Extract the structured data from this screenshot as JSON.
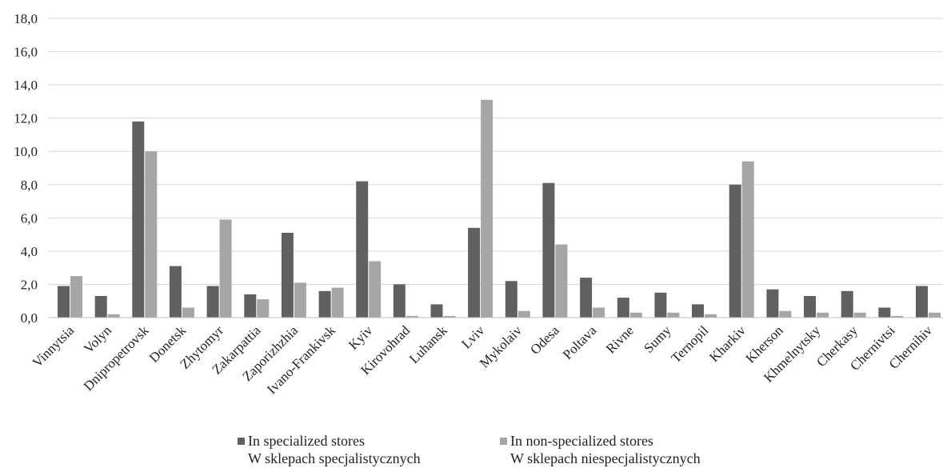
{
  "chart_data": {
    "type": "bar",
    "title": "",
    "xlabel": "",
    "ylabel": "",
    "ylim": [
      0,
      18
    ],
    "yticks": [
      "0,0",
      "2,0",
      "4,0",
      "6,0",
      "8,0",
      "10,0",
      "12,0",
      "14,0",
      "16,0",
      "18,0"
    ],
    "grid": true,
    "legend_position": "bottom",
    "categories": [
      "Vinnytsia",
      "Volyn",
      "Dnipropetrovsk",
      "Donetsk",
      "Zhytomyr",
      "Zakarpattia",
      "Zaporizhzhia",
      "Ivano-Frankivsk",
      "Kyiv",
      "Kirovohrad",
      "Luhansk",
      "Lviv",
      "Mykolaiv",
      "Odesa",
      "Poltava",
      "Rivne",
      "Sumy",
      "Ternopil",
      "Kharkiv",
      "Kherson",
      "Khmelnytsky",
      "Cherkasy",
      "Chernivtsi",
      "Chernihiv"
    ],
    "series": [
      {
        "name": "In specialized stores",
        "name_pl": "W sklepach specjalistycznych",
        "color": "#606060",
        "values": [
          1.9,
          1.3,
          11.8,
          3.1,
          1.9,
          1.4,
          5.1,
          1.6,
          8.2,
          2.0,
          0.8,
          5.4,
          2.2,
          8.1,
          2.4,
          1.2,
          1.5,
          0.8,
          8.0,
          1.7,
          1.3,
          1.6,
          0.6,
          1.9
        ]
      },
      {
        "name": "In non-specialized stores",
        "name_pl": "W sklepach niespecjalistycznych",
        "color": "#a6a6a6",
        "values": [
          2.5,
          0.2,
          10.0,
          0.6,
          5.9,
          1.1,
          2.1,
          1.8,
          3.4,
          0.1,
          0.1,
          13.1,
          0.4,
          4.4,
          0.6,
          0.3,
          0.3,
          0.2,
          9.4,
          0.4,
          0.3,
          0.3,
          0.1,
          0.3
        ]
      }
    ]
  }
}
